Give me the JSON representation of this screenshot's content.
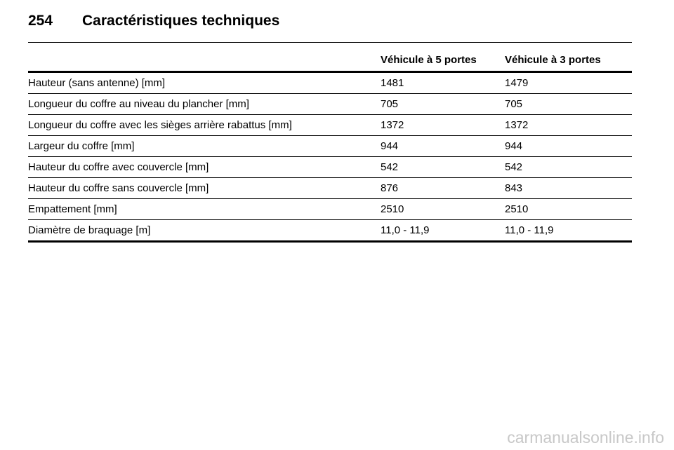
{
  "header": {
    "page_number": "254",
    "title": "Caractéristiques techniques"
  },
  "table": {
    "columns": [
      "",
      "Véhicule à 5 portes",
      "Véhicule à 3 portes"
    ],
    "rows": [
      {
        "label": "Hauteur (sans antenne) [mm]",
        "five_door": "1481",
        "three_door": "1479"
      },
      {
        "label": "Longueur du coffre au niveau du plancher [mm]",
        "five_door": "705",
        "three_door": "705"
      },
      {
        "label": "Longueur du coffre avec les sièges arrière rabattus [mm]",
        "five_door": "1372",
        "three_door": "1372"
      },
      {
        "label": "Largeur du coffre [mm]",
        "five_door": "944",
        "three_door": "944"
      },
      {
        "label": "Hauteur du coffre avec couvercle [mm]",
        "five_door": "542",
        "three_door": "542"
      },
      {
        "label": "Hauteur du coffre sans couvercle [mm]",
        "five_door": "876",
        "three_door": "843"
      },
      {
        "label": "Empattement [mm]",
        "five_door": "2510",
        "three_door": "2510"
      },
      {
        "label": "Diamètre de braquage [m]",
        "five_door": "11,0 - 11,9",
        "three_door": "11,0 - 11,9"
      }
    ]
  },
  "watermark": "carmanualsonline.info"
}
